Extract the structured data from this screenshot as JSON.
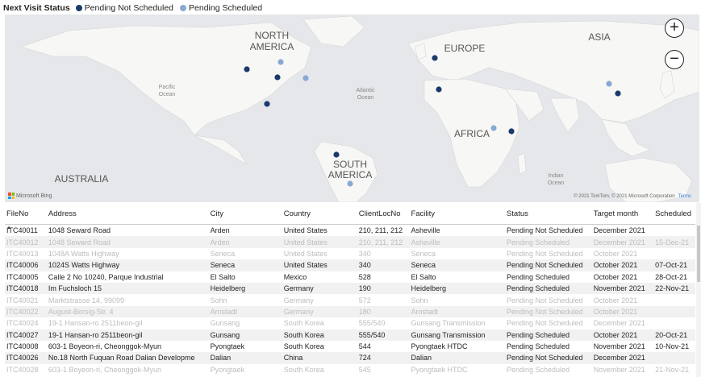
{
  "legend": {
    "title": "Next Visit Status",
    "items": [
      {
        "label": "Pending Not Scheduled",
        "color": "#1b3a6b"
      },
      {
        "label": "Pending Scheduled",
        "color": "#8aa8d4"
      }
    ]
  },
  "map": {
    "labels": {
      "north_america": [
        "NORTH",
        "AMERICA"
      ],
      "south_america": [
        "SOUTH",
        "AMERICA"
      ],
      "europe": "EUROPE",
      "asia": "ASIA",
      "africa": "AFRICA",
      "australia": "AUSTRALIA",
      "pacific": [
        "Pacific",
        "Ocean"
      ],
      "atlantic": [
        "Atlantic",
        "Ocean"
      ],
      "indian": [
        "Indian",
        "Ocean"
      ]
    },
    "zoom_in": "+",
    "zoom_out": "−",
    "brand": "Microsoft Bing",
    "credit": "© 2021 TomTom, © 2021 Microsoft Corporation",
    "terms": "Terms",
    "points": [
      {
        "region": "US West",
        "status": "Pending Not Scheduled"
      },
      {
        "region": "US North",
        "status": "Pending Scheduled"
      },
      {
        "region": "US Central",
        "status": "Pending Not Scheduled"
      },
      {
        "region": "US East",
        "status": "Pending Scheduled"
      },
      {
        "region": "Mexico",
        "status": "Pending Not Scheduled"
      },
      {
        "region": "France",
        "status": "Pending Not Scheduled"
      },
      {
        "region": "Spain",
        "status": "Pending Not Scheduled"
      },
      {
        "region": "East Africa",
        "status": "Pending Scheduled"
      },
      {
        "region": "Horn of Africa",
        "status": "Pending Not Scheduled"
      },
      {
        "region": "Brazil",
        "status": "Pending Not Scheduled"
      },
      {
        "region": "South Brazil",
        "status": "Pending Scheduled"
      },
      {
        "region": "China North",
        "status": "Pending Scheduled"
      },
      {
        "region": "China East",
        "status": "Pending Not Scheduled"
      }
    ]
  },
  "table": {
    "columns": [
      "FileNo",
      "Address",
      "City",
      "Country",
      "ClientLocNo",
      "Facility",
      "Status",
      "Target month",
      "Scheduled"
    ],
    "rows": [
      {
        "dim": false,
        "cells": [
          "ITC40011",
          "1048 Seward Road",
          "Arden",
          "United States",
          "210, 211, 212",
          "Asheville",
          "Pending Not Scheduled",
          "December 2021",
          ""
        ]
      },
      {
        "dim": true,
        "cells": [
          "ITC40012",
          "1048 Seward Road",
          "Arden",
          "United States",
          "210, 211, 212",
          "Asheville",
          "Pending Scheduled",
          "December 2021",
          "15-Dec-21"
        ]
      },
      {
        "dim": true,
        "cells": [
          "ITC40013",
          "1048A Watts Highway",
          "Seneca",
          "United States",
          "340",
          "Seneca",
          "Pending Not Scheduled",
          "October 2021",
          ""
        ]
      },
      {
        "dim": false,
        "cells": [
          "ITC40006",
          "1024S Watts Highway",
          "Seneca",
          "United States",
          "340",
          "Seneca",
          "Pending Not Scheduled",
          "October 2021",
          "07-Oct-21"
        ]
      },
      {
        "dim": false,
        "cells": [
          "ITC40005",
          "Calle 2 No 10240, Parque Industrial",
          "El Salto",
          "Mexico",
          "528",
          "El Salto",
          "Pending Scheduled",
          "October 2021",
          "28-Oct-21"
        ]
      },
      {
        "dim": false,
        "cells": [
          "ITC40018",
          "Im Fuchsloch 15",
          "Heidelberg",
          "Germany",
          "190",
          "Heidelberg",
          "Pending Scheduled",
          "November 2021",
          "22-Nov-21"
        ]
      },
      {
        "dim": true,
        "cells": [
          "ITC40021",
          "Marktstrasse 14, 99099",
          "Sohn",
          "Germany",
          "572",
          "Sohn",
          "Pending Not Scheduled",
          "October 2021",
          ""
        ]
      },
      {
        "dim": true,
        "cells": [
          "ITC40022",
          "August-Borsig-Str. 4",
          "Arnstadt",
          "Germany",
          "180",
          "Arnstadt",
          "Pending Not Scheduled",
          "October 2021",
          ""
        ]
      },
      {
        "dim": true,
        "cells": [
          "ITC40024",
          "19-1 Hansan-ro 2511beon-gil",
          "Gunsang",
          "South Korea",
          "555/540",
          "Gunsang Transmission",
          "Pending Not Scheduled",
          "December 2021",
          ""
        ]
      },
      {
        "dim": false,
        "cells": [
          "ITC40027",
          "19-1 Hansan-ro 2511beon-gil",
          "Gunsang",
          "South Korea",
          "555/540",
          "Gunsang Transmission",
          "Pending Scheduled",
          "October 2021",
          "20-Oct-21"
        ]
      },
      {
        "dim": false,
        "cells": [
          "ITC40008",
          "603-1 Boyeon-ri, Cheonggok-Myun",
          "Pyongtaek",
          "South Korea",
          "544",
          "Pyongtaek HTDC",
          "Pending Scheduled",
          "November 2021",
          "10-Nov-21"
        ]
      },
      {
        "dim": false,
        "cells": [
          "ITC40026",
          "No.18 North Fuquan Road Dalian Developme",
          "Dalian",
          "China",
          "724",
          "Dalian",
          "Pending Not Scheduled",
          "December 2021",
          ""
        ]
      },
      {
        "dim": true,
        "cells": [
          "ITC40028",
          "603-1 Boyeon-ri, Cheonggok-Myun",
          "Pyongtaek",
          "South Korea",
          "545",
          "Pyongtaek HTDC",
          "Pending Scheduled",
          "November 2021",
          "21-Nov-21"
        ]
      }
    ]
  }
}
